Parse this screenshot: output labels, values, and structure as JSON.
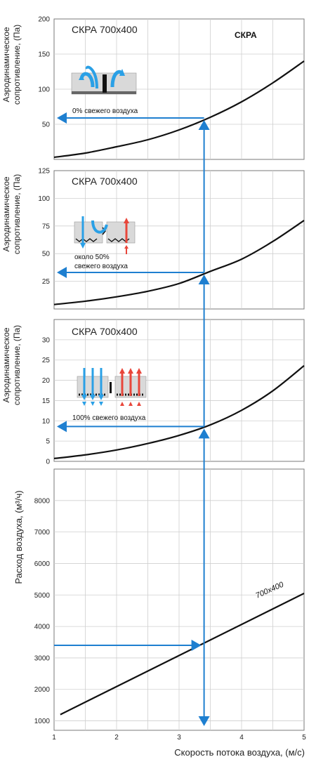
{
  "colors": {
    "arrow": "#1e7fd0",
    "curve": "#111111",
    "grid": "#cfcfcf",
    "frame": "#7a7a7a",
    "fresh_air": "#2aa0e6",
    "exhaust_air": "#e8463a"
  },
  "icons": [
    "damper-closed-recirculation-icon",
    "damper-half-open-icon",
    "damper-fully-open-icon"
  ],
  "chart_data": [
    {
      "type": "line",
      "title": "СКРА 700х400",
      "brand": "СКРА",
      "ylabel_line1": "Аэродинамическое",
      "ylabel_line2": "сопротивление, (Па)",
      "annotation_lines": [
        "0% свежего воздуха"
      ],
      "ylim": [
        0,
        200
      ],
      "yticks": [
        50,
        100,
        150,
        200
      ],
      "xlim": [
        1,
        5
      ],
      "series": [
        {
          "x": [
            1.0,
            1.5,
            2.0,
            2.5,
            3.0,
            3.5,
            4.0,
            4.5,
            5.0
          ],
          "y": [
            3,
            9,
            18,
            28,
            42,
            60,
            82,
            109,
            140
          ]
        }
      ],
      "readout": {
        "x": 3.4,
        "y": 59
      }
    },
    {
      "type": "line",
      "title": "СКРА 700х400",
      "ylabel_line1": "Аэродинамическое",
      "ylabel_line2": "сопротивление, (Па)",
      "annotation_lines": [
        "около 50%",
        "свежего воздуха"
      ],
      "ylim": [
        0,
        125
      ],
      "yticks": [
        25,
        50,
        75,
        100,
        125
      ],
      "xlim": [
        1,
        5
      ],
      "series": [
        {
          "x": [
            1.0,
            1.5,
            2.0,
            2.5,
            3.0,
            3.5,
            4.0,
            4.5,
            5.0
          ],
          "y": [
            4,
            7,
            11,
            16,
            23,
            34,
            45,
            61,
            80
          ]
        }
      ],
      "readout": {
        "x": 3.4,
        "y": 33
      }
    },
    {
      "type": "line",
      "title": "СКРА 700х400",
      "ylabel_line1": "Аэродинамическое",
      "ylabel_line2": "сопротивление, (Па)",
      "annotation_lines": [
        "100% свежего воздуха"
      ],
      "ylim": [
        0,
        35
      ],
      "yticks": [
        0,
        5,
        10,
        15,
        20,
        25,
        30
      ],
      "xlim": [
        1,
        5
      ],
      "series": [
        {
          "x": [
            1.0,
            1.5,
            2.0,
            2.5,
            3.0,
            3.5,
            4.0,
            4.5,
            5.0
          ],
          "y": [
            0.7,
            1.6,
            2.8,
            4.4,
            6.4,
            9.0,
            12.6,
            17.4,
            23.6
          ]
        }
      ],
      "readout": {
        "x": 3.4,
        "y": 8.6
      }
    },
    {
      "type": "line",
      "ylabel": "Расход воздуха, (м³/ч)",
      "xlabel": "Скорость потока воздуха, (м/с)",
      "ylim": [
        700,
        9000
      ],
      "yticks": [
        1000,
        2000,
        3000,
        4000,
        5000,
        6000,
        7000,
        8000
      ],
      "xlim": [
        1,
        5
      ],
      "xticks": [
        1,
        2,
        3,
        4,
        5
      ],
      "series": [
        {
          "name": "700х400",
          "x": [
            1.1,
            5.0
          ],
          "y": [
            1200,
            5050
          ]
        }
      ],
      "readout": {
        "x": 3.4,
        "y": 3400
      }
    }
  ]
}
